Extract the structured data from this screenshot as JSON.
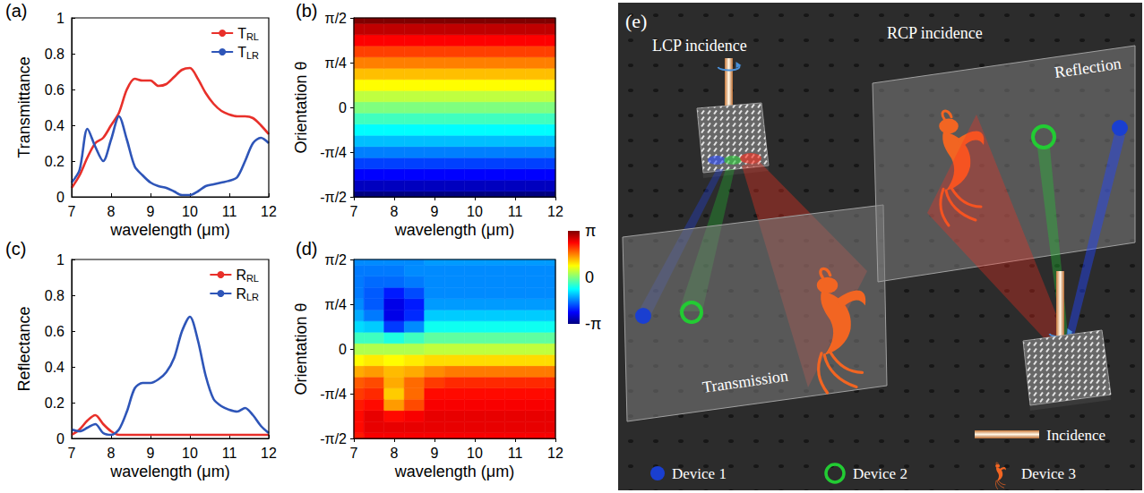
{
  "chart_data": [
    {
      "type": "line",
      "label": "(a)",
      "xlabel": "wavelength (μm)",
      "ylabel": "Transmittance",
      "x": [
        7,
        7.2,
        7.4,
        7.6,
        7.8,
        8,
        8.2,
        8.4,
        8.6,
        8.8,
        9,
        9.2,
        9.4,
        9.6,
        9.8,
        10,
        10.2,
        10.4,
        10.6,
        10.8,
        11,
        11.2,
        11.4,
        11.6,
        11.8,
        12
      ],
      "series": [
        {
          "name": "TRL",
          "color": "#e8302a",
          "values": [
            0.05,
            0.12,
            0.22,
            0.3,
            0.33,
            0.4,
            0.47,
            0.6,
            0.66,
            0.65,
            0.65,
            0.62,
            0.63,
            0.67,
            0.71,
            0.72,
            0.66,
            0.58,
            0.52,
            0.48,
            0.46,
            0.45,
            0.45,
            0.44,
            0.4,
            0.35
          ]
        },
        {
          "name": "TLR",
          "color": "#2e55b8",
          "values": [
            0.08,
            0.15,
            0.38,
            0.28,
            0.2,
            0.32,
            0.45,
            0.32,
            0.17,
            0.12,
            0.08,
            0.06,
            0.05,
            0.03,
            0.01,
            0.01,
            0.03,
            0.06,
            0.07,
            0.08,
            0.09,
            0.11,
            0.2,
            0.3,
            0.33,
            0.3
          ]
        }
      ],
      "xlim": [
        7,
        12
      ],
      "xticks": [
        7,
        8,
        9,
        10,
        11,
        12
      ],
      "ylim": [
        0,
        1
      ],
      "yticks": [
        0,
        0.2,
        0.4,
        0.6,
        0.8,
        1
      ],
      "legend": "upper right",
      "grid": false
    },
    {
      "type": "heatmap",
      "label": "(b)",
      "xlabel": "wavelength (μm)",
      "ylabel": "Orientation θ",
      "x": [
        7,
        7.5,
        8,
        8.5,
        9,
        9.5,
        10,
        10.5,
        11,
        11.5,
        12
      ],
      "y": [
        -1.5708,
        -1.3744,
        -1.1781,
        -0.9817,
        -0.7854,
        -0.589,
        -0.3927,
        -0.1963,
        0,
        0.1963,
        0.3927,
        0.589,
        0.7854,
        0.9817,
        1.1781,
        1.3744,
        1.5708
      ],
      "values": [
        [
          -3.14,
          -3.14,
          -3.14,
          -3.14,
          -3.14,
          -3.14,
          -3.14,
          -3.14,
          -3.14,
          -3.14,
          -3.14
        ],
        [
          -2.75,
          -2.75,
          -2.75,
          -2.75,
          -2.75,
          -2.75,
          -2.75,
          -2.75,
          -2.75,
          -2.75,
          -2.75
        ],
        [
          -2.36,
          -2.36,
          -2.36,
          -2.36,
          -2.36,
          -2.36,
          -2.36,
          -2.36,
          -2.36,
          -2.36,
          -2.36
        ],
        [
          -1.96,
          -1.96,
          -1.96,
          -1.96,
          -1.96,
          -1.96,
          -1.96,
          -1.96,
          -1.96,
          -1.96,
          -1.96
        ],
        [
          -1.57,
          -1.57,
          -1.57,
          -1.57,
          -1.57,
          -1.57,
          -1.57,
          -1.57,
          -1.57,
          -1.57,
          -1.57
        ],
        [
          -1.18,
          -1.18,
          -1.18,
          -1.18,
          -1.18,
          -1.18,
          -1.18,
          -1.18,
          -1.18,
          -1.18,
          -1.18
        ],
        [
          -0.79,
          -0.79,
          -0.79,
          -0.79,
          -0.79,
          -0.79,
          -0.79,
          -0.79,
          -0.79,
          -0.79,
          -0.79
        ],
        [
          -0.39,
          -0.39,
          -0.39,
          -0.39,
          -0.39,
          -0.39,
          -0.39,
          -0.39,
          -0.39,
          -0.39,
          -0.39
        ],
        [
          0,
          0,
          0,
          0,
          0,
          0,
          0,
          0,
          0,
          0,
          0
        ],
        [
          0.39,
          0.39,
          0.39,
          0.39,
          0.39,
          0.39,
          0.39,
          0.39,
          0.39,
          0.39,
          0.39
        ],
        [
          0.79,
          0.79,
          0.79,
          0.79,
          0.79,
          0.79,
          0.79,
          0.79,
          0.79,
          0.79,
          0.79
        ],
        [
          1.18,
          1.18,
          1.18,
          1.18,
          1.18,
          1.18,
          1.18,
          1.18,
          1.18,
          1.18,
          1.18
        ],
        [
          1.57,
          1.57,
          1.57,
          1.57,
          1.57,
          1.57,
          1.57,
          1.57,
          1.57,
          1.57,
          1.57
        ],
        [
          1.96,
          1.96,
          1.96,
          1.96,
          1.96,
          1.96,
          1.96,
          1.96,
          1.96,
          1.96,
          1.96
        ],
        [
          2.36,
          2.36,
          2.36,
          2.36,
          2.36,
          2.36,
          2.36,
          2.36,
          2.36,
          2.36,
          2.36
        ],
        [
          2.75,
          2.75,
          2.75,
          2.75,
          2.75,
          2.75,
          2.75,
          2.75,
          2.75,
          2.75,
          2.75
        ],
        [
          3.14,
          3.14,
          3.14,
          3.14,
          3.14,
          3.14,
          3.14,
          3.14,
          3.14,
          3.14,
          3.14
        ]
      ],
      "xlim": [
        7,
        12
      ],
      "xticks": [
        7,
        8,
        9,
        10,
        11,
        12
      ],
      "ylim": [
        -1.5708,
        1.5708
      ],
      "yticks": [
        {
          "value": -1.5708,
          "label": "-π/2"
        },
        {
          "value": -0.7854,
          "label": "-π/4"
        },
        0,
        {
          "value": 0.7854,
          "label": "π/4"
        },
        {
          "value": 1.5708,
          "label": "π/2"
        }
      ]
    },
    {
      "type": "line",
      "label": "(c)",
      "xlabel": "wavelength (μm)",
      "ylabel": "Reflectance",
      "x": [
        7,
        7.2,
        7.4,
        7.6,
        7.8,
        8,
        8.2,
        8.4,
        8.6,
        8.8,
        9,
        9.2,
        9.4,
        9.6,
        9.8,
        10,
        10.2,
        10.4,
        10.6,
        10.8,
        11,
        11.2,
        11.4,
        11.6,
        11.8,
        12
      ],
      "series": [
        {
          "name": "RRL",
          "color": "#e8302a",
          "values": [
            0.02,
            0.05,
            0.1,
            0.13,
            0.08,
            0.04,
            0.02,
            0.02,
            0.02,
            0.02,
            0.02,
            0.02,
            0.02,
            0.02,
            0.02,
            0.02,
            0.02,
            0.02,
            0.02,
            0.02,
            0.02,
            0.02,
            0.02,
            0.02,
            0.02,
            0.02
          ]
        },
        {
          "name": "RLR",
          "color": "#2e55b8",
          "values": [
            0.05,
            0.04,
            0.06,
            0.08,
            0.03,
            0.02,
            0.05,
            0.15,
            0.28,
            0.31,
            0.31,
            0.33,
            0.37,
            0.45,
            0.6,
            0.68,
            0.55,
            0.35,
            0.22,
            0.18,
            0.16,
            0.15,
            0.17,
            0.13,
            0.07,
            0.03
          ]
        }
      ],
      "xlim": [
        7,
        12
      ],
      "xticks": [
        7,
        8,
        9,
        10,
        11,
        12
      ],
      "ylim": [
        0,
        1
      ],
      "yticks": [
        0,
        0.2,
        0.4,
        0.6,
        0.8,
        1
      ],
      "legend": "upper right",
      "grid": false
    },
    {
      "type": "heatmap",
      "label": "(d)",
      "xlabel": "wavelength (μm)",
      "ylabel": "Orientation θ",
      "x": [
        7,
        7.5,
        8,
        8.5,
        9,
        9.5,
        10,
        10.5,
        11,
        11.5,
        12
      ],
      "y": [
        -1.5708,
        -1.3744,
        -1.1781,
        -0.9817,
        -0.7854,
        -0.589,
        -0.3927,
        -0.1963,
        0,
        0.1963,
        0.3927,
        0.589,
        0.7854,
        0.9817,
        1.1781,
        1.3744,
        1.5708
      ],
      "values": [
        [
          2.2,
          2.4,
          2.4,
          2.4,
          2.4,
          2.4,
          2.4,
          2.4,
          2.4,
          2.4,
          2.4
        ],
        [
          2.3,
          2.5,
          2.5,
          2.5,
          2.5,
          2.5,
          2.5,
          2.5,
          2.5,
          2.5,
          2.5
        ],
        [
          2.3,
          2.5,
          2.3,
          2.4,
          2.5,
          2.5,
          2.5,
          2.5,
          2.5,
          2.5,
          2.5
        ],
        [
          2.2,
          2.3,
          1.4,
          1.9,
          2.4,
          2.4,
          2.4,
          2.4,
          2.4,
          2.4,
          2.4
        ],
        [
          2.0,
          2.1,
          1.1,
          1.7,
          2.3,
          2.3,
          2.3,
          2.3,
          2.3,
          2.3,
          2.3
        ],
        [
          1.8,
          1.9,
          1.3,
          1.7,
          2.0,
          2.1,
          2.1,
          2.1,
          2.1,
          2.1,
          2.1
        ],
        [
          1.3,
          1.4,
          1.2,
          1.3,
          1.5,
          1.6,
          1.6,
          1.6,
          1.6,
          1.6,
          1.6
        ],
        [
          0.8,
          0.9,
          0.8,
          0.9,
          1.0,
          1.0,
          1.0,
          1.0,
          1.0,
          1.0,
          1.0
        ],
        [
          0.3,
          0.3,
          0.3,
          0.3,
          0.4,
          0.4,
          0.4,
          0.4,
          0.4,
          0.4,
          0.4
        ],
        [
          -0.4,
          -0.4,
          -0.6,
          -0.4,
          -0.2,
          -0.2,
          -0.2,
          -0.2,
          -0.2,
          -0.2,
          -0.2
        ],
        [
          -1.0,
          -1.1,
          -2.0,
          -1.5,
          -0.7,
          -0.7,
          -0.7,
          -0.7,
          -0.7,
          -0.7,
          -0.7
        ],
        [
          -1.3,
          -1.6,
          -2.5,
          -2.1,
          -1.1,
          -1.1,
          -1.1,
          -1.1,
          -1.1,
          -1.1,
          -1.1
        ],
        [
          -1.5,
          -1.8,
          -2.5,
          -2.2,
          -1.4,
          -1.4,
          -1.4,
          -1.4,
          -1.4,
          -1.4,
          -1.4
        ],
        [
          -1.6,
          -1.8,
          -2.2,
          -1.9,
          -1.5,
          -1.5,
          -1.5,
          -1.5,
          -1.5,
          -1.5,
          -1.5
        ],
        [
          -1.6,
          -1.7,
          -1.7,
          -1.6,
          -1.5,
          -1.5,
          -1.5,
          -1.5,
          -1.5,
          -1.5,
          -1.5
        ],
        [
          -1.6,
          -1.6,
          -1.6,
          -1.5,
          -1.5,
          -1.5,
          -1.5,
          -1.5,
          -1.5,
          -1.5,
          -1.5
        ],
        [
          -1.5,
          -1.5,
          -1.5,
          -1.5,
          -1.4,
          -1.4,
          -1.4,
          -1.4,
          -1.4,
          -1.4,
          -1.4
        ]
      ],
      "xlim": [
        7,
        12
      ],
      "xticks": [
        7,
        8,
        9,
        10,
        11,
        12
      ],
      "ylim": [
        -1.5708,
        1.5708
      ],
      "yticks": [
        {
          "value": -1.5708,
          "label": "-π/2"
        },
        {
          "value": -0.7854,
          "label": "-π/4"
        },
        0,
        {
          "value": 0.7854,
          "label": "π/4"
        },
        {
          "value": 1.5708,
          "label": "π/2"
        }
      ]
    }
  ],
  "colorbar": {
    "range": [
      -3.1416,
      3.1416
    ],
    "ticks": [
      {
        "value": -3.1416,
        "label": "-π"
      },
      0,
      {
        "value": 3.1416,
        "label": "π"
      }
    ],
    "colors": [
      "#00007f",
      "#0000ff",
      "#007fff",
      "#00ffff",
      "#7fff7f",
      "#ffff00",
      "#ff7f00",
      "#ff0000",
      "#7f0000"
    ]
  },
  "illustration": {
    "label": "(e)",
    "lcp": "LCP incidence",
    "rcp": "RCP incidence",
    "transmission": "Transmission",
    "reflection": "Reflection",
    "key_items": {
      "incidence": "Incidence",
      "devices": [
        "Device 1",
        "Device 2",
        "Device 3"
      ]
    }
  }
}
